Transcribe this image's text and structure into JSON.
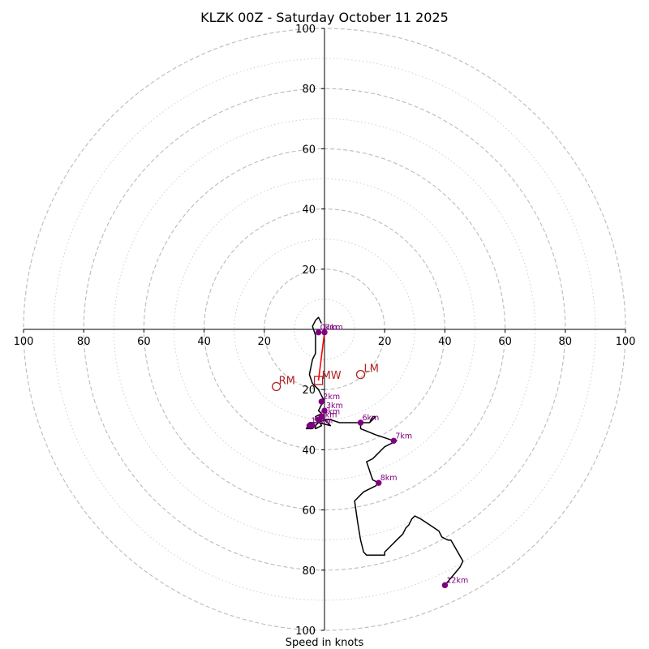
{
  "chart_data": {
    "type": "hodograph",
    "title": "KLZK 00Z - Saturday October 11 2025",
    "xlabel": "Speed in knots",
    "max_speed_kt": 100,
    "ring_step_kt": 20,
    "minor_ring_step_kt": 10,
    "x_tick_labels": [
      "100",
      "80",
      "60",
      "40",
      "20",
      "20",
      "40",
      "60",
      "80",
      "100"
    ],
    "y_tick_labels": [
      "100",
      "80",
      "60",
      "40",
      "20",
      "20",
      "40",
      "60",
      "80",
      "100"
    ],
    "trace_uv_kt": [
      [
        -1,
        2
      ],
      [
        -2,
        4
      ],
      [
        -3,
        3
      ],
      [
        -4,
        1
      ],
      [
        -3,
        -2
      ],
      [
        -3,
        -8
      ],
      [
        -4,
        -10
      ],
      [
        -5,
        -15
      ],
      [
        -4,
        -18
      ],
      [
        -2,
        -20
      ],
      [
        -1,
        -22
      ],
      [
        0,
        -24
      ],
      [
        -1,
        -25
      ],
      [
        -2,
        -27
      ],
      [
        -1,
        -28
      ],
      [
        -3,
        -29
      ],
      [
        -2,
        -31
      ],
      [
        -3,
        -32
      ],
      [
        -3,
        -33
      ],
      [
        -1,
        -32
      ],
      [
        -2,
        -30
      ],
      [
        -1,
        -29
      ],
      [
        1,
        -31
      ],
      [
        2,
        -32
      ],
      [
        -2,
        -31
      ],
      [
        -5,
        -31
      ],
      [
        -6,
        -33
      ],
      [
        -4,
        -33
      ],
      [
        -2,
        -31
      ],
      [
        0,
        -30
      ],
      [
        2,
        -30
      ],
      [
        5,
        -31
      ],
      [
        8,
        -31
      ],
      [
        11,
        -31
      ],
      [
        12,
        -31
      ],
      [
        14,
        -31
      ],
      [
        15,
        -31
      ],
      [
        16,
        -29
      ],
      [
        17,
        -29
      ],
      [
        15,
        -31
      ],
      [
        12,
        -31
      ],
      [
        12,
        -33
      ],
      [
        17,
        -35
      ],
      [
        23,
        -37
      ],
      [
        24,
        -37
      ],
      [
        22,
        -38
      ],
      [
        20,
        -39
      ],
      [
        19,
        -40
      ],
      [
        17,
        -42
      ],
      [
        16,
        -43
      ],
      [
        16,
        -43
      ],
      [
        14,
        -44
      ],
      [
        16,
        -50
      ],
      [
        18,
        -51
      ],
      [
        17,
        -52
      ],
      [
        13,
        -54
      ],
      [
        10,
        -57
      ],
      [
        11,
        -64
      ],
      [
        12,
        -70
      ],
      [
        13,
        -74
      ],
      [
        14,
        -75
      ],
      [
        19,
        -75
      ],
      [
        20,
        -75
      ],
      [
        20,
        -74
      ],
      [
        22,
        -72
      ],
      [
        24,
        -70
      ],
      [
        26,
        -68
      ],
      [
        27,
        -66
      ],
      [
        28,
        -65
      ],
      [
        29,
        -63
      ],
      [
        30,
        -62
      ],
      [
        32,
        -63
      ],
      [
        35,
        -65
      ],
      [
        38,
        -67
      ],
      [
        39,
        -69
      ],
      [
        41,
        -70
      ],
      [
        42,
        -70
      ],
      [
        46,
        -77
      ],
      [
        45,
        -79
      ],
      [
        40,
        -85
      ]
    ],
    "height_markers": [
      {
        "label": "0km",
        "u": -2,
        "v": -1
      },
      {
        "label": "1km",
        "u": 0,
        "v": -1
      },
      {
        "label": "2km",
        "u": -1,
        "v": -24
      },
      {
        "label": "3km",
        "u": 0,
        "v": -27
      },
      {
        "label": "4km",
        "u": -1,
        "v": -29
      },
      {
        "label": "5km",
        "u": -2,
        "v": -30
      },
      {
        "label": "6km",
        "u": 12,
        "v": -31
      },
      {
        "label": "7km",
        "u": 23,
        "v": -37
      },
      {
        "label": "8km",
        "u": 18,
        "v": -51
      },
      {
        "label": "9km",
        "u": -4,
        "v": -32
      },
      {
        "label": "10km",
        "u": -5,
        "v": -32
      },
      {
        "label": "12km",
        "u": 40,
        "v": -85
      }
    ],
    "storm_motion": {
      "RM": {
        "u": -16,
        "v": -19
      },
      "LM": {
        "u": 12,
        "v": -15
      },
      "MW": {
        "u": -2,
        "v": -17
      }
    },
    "shear_vector": {
      "from": {
        "u": 0,
        "v": -1
      },
      "to": {
        "u": -2,
        "v": -17
      }
    },
    "colors": {
      "trace": "#000000",
      "height_marker": "#800080",
      "storm_motion": "#b22222",
      "shear_vector": "#ff0000",
      "major_ring": "#bbbbbb",
      "minor_ring": "#cccccc"
    }
  }
}
